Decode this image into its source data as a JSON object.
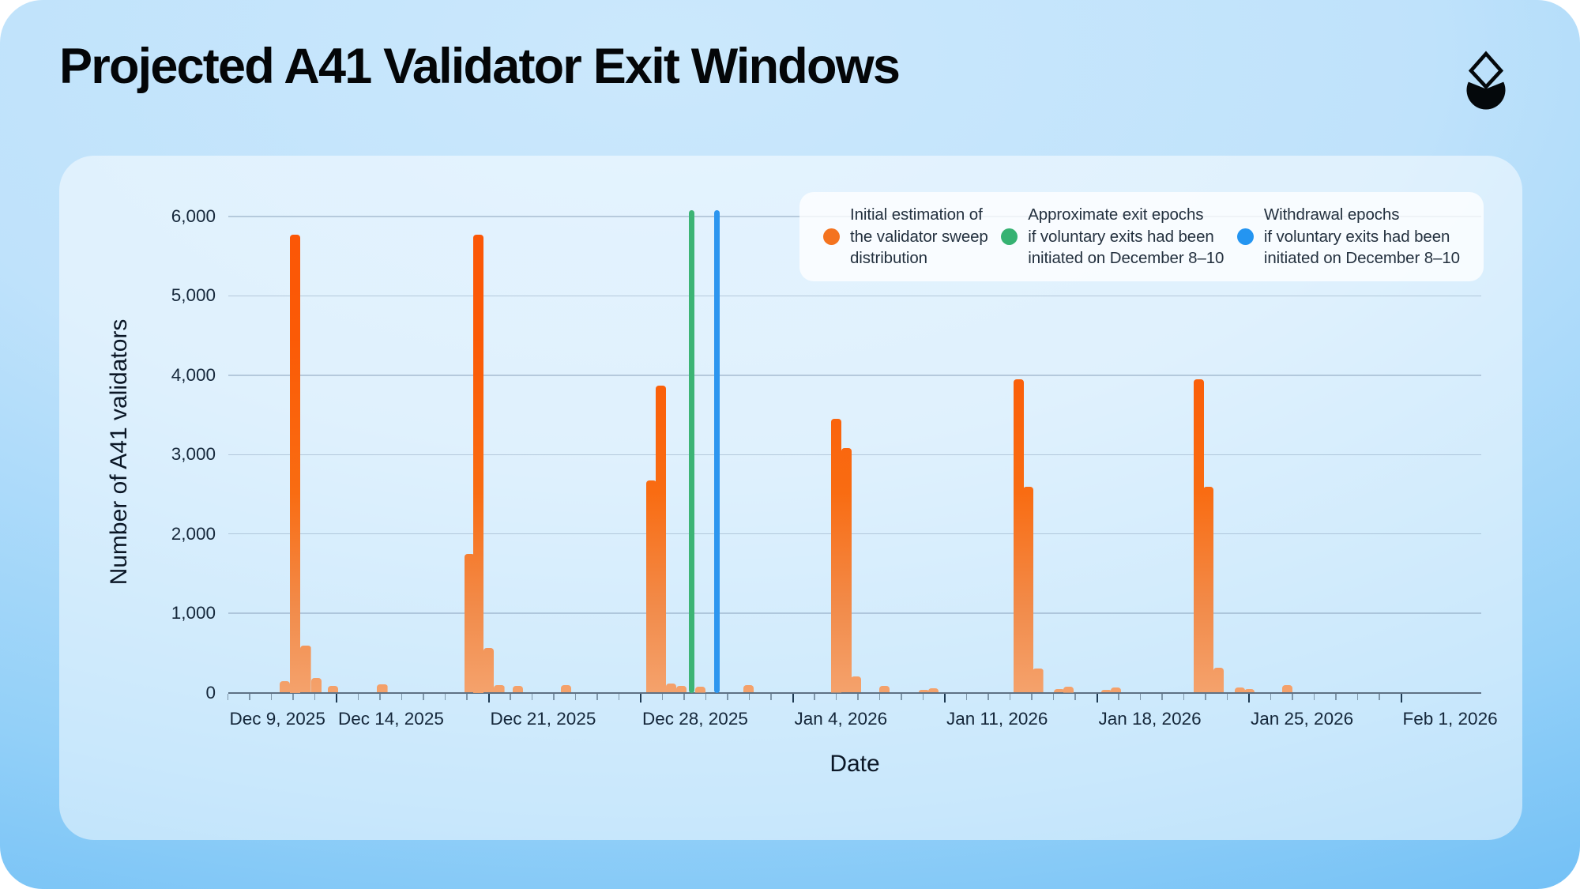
{
  "title": "Projected A41 Validator Exit Windows",
  "logo": {
    "icon": "a41-droplet-logo",
    "color": "#04080B"
  },
  "legend": {
    "items": [
      {
        "color": "#F4731F",
        "lines": [
          "Initial estimation of",
          "the validator sweep",
          "distribution"
        ]
      },
      {
        "color": "#36B272",
        "lines": [
          "Approximate exit epochs",
          "if voluntary exits had been",
          "initiated on December 8–10"
        ]
      },
      {
        "color": "#2495F1",
        "lines": [
          "Withdrawal epochs",
          "if voluntary exits had been",
          "initiated on December 8–10"
        ]
      }
    ]
  },
  "chart_data": {
    "type": "bar",
    "title": "Projected A41 Validator Exit Windows",
    "xlabel": "Date",
    "ylabel": "Number of A41 validators",
    "ylim": [
      0,
      6000
    ],
    "grid": "horizontal",
    "legend_position": "top-right",
    "series_name": "Initial estimation of the validator sweep distribution",
    "x_unit": "days after Dec 9, 2025",
    "yticks": [
      {
        "v": 0,
        "label": "0"
      },
      {
        "v": 1000,
        "label": "1,000"
      },
      {
        "v": 2000,
        "label": "2,000"
      },
      {
        "v": 3000,
        "label": "3,000"
      },
      {
        "v": 4000,
        "label": "4,000"
      },
      {
        "v": 5000,
        "label": "5,000"
      },
      {
        "v": 6000,
        "label": "6,000"
      }
    ],
    "xticks": [
      {
        "d": 0,
        "label": "Dec 9, 2025",
        "strong": false
      },
      {
        "d": 5,
        "label": "Dec 14, 2025",
        "strong": true
      },
      {
        "d": 12,
        "label": "Dec 21, 2025",
        "strong": true
      },
      {
        "d": 19,
        "label": "Dec 28, 2025",
        "strong": true
      },
      {
        "d": 26,
        "label": "Jan 4, 2026",
        "strong": true
      },
      {
        "d": 33,
        "label": "Jan 11, 2026",
        "strong": true
      },
      {
        "d": 40,
        "label": "Jan 18, 2026",
        "strong": true
      },
      {
        "d": 47,
        "label": "Jan 25, 2026",
        "strong": true
      },
      {
        "d": 54,
        "label": "Feb 1, 2026",
        "strong": true
      }
    ],
    "bars": [
      {
        "d": 2.38,
        "v": 145
      },
      {
        "d": 2.86,
        "v": 5775
      },
      {
        "d": 3.34,
        "v": 590
      },
      {
        "d": 3.82,
        "v": 185
      },
      {
        "d": 4.6,
        "v": 80
      },
      {
        "d": 6.87,
        "v": 100
      },
      {
        "d": 10.9,
        "v": 1750
      },
      {
        "d": 11.29,
        "v": 5775
      },
      {
        "d": 11.77,
        "v": 560
      },
      {
        "d": 12.25,
        "v": 95
      },
      {
        "d": 13.1,
        "v": 85
      },
      {
        "d": 15.33,
        "v": 95
      },
      {
        "d": 19.24,
        "v": 2670
      },
      {
        "d": 19.69,
        "v": 3865
      },
      {
        "d": 20.17,
        "v": 115
      },
      {
        "d": 20.62,
        "v": 85
      },
      {
        "d": 21.52,
        "v": 75
      },
      {
        "d": 23.72,
        "v": 90
      },
      {
        "d": 27.75,
        "v": 3450
      },
      {
        "d": 28.24,
        "v": 3080
      },
      {
        "d": 28.68,
        "v": 205
      },
      {
        "d": 29.97,
        "v": 85
      },
      {
        "d": 31.79,
        "v": 35
      },
      {
        "d": 32.22,
        "v": 55
      },
      {
        "d": 36.15,
        "v": 3945
      },
      {
        "d": 36.6,
        "v": 2590
      },
      {
        "d": 37.05,
        "v": 305
      },
      {
        "d": 38.03,
        "v": 40
      },
      {
        "d": 38.46,
        "v": 75
      },
      {
        "d": 40.2,
        "v": 35
      },
      {
        "d": 40.64,
        "v": 65
      },
      {
        "d": 44.44,
        "v": 3945
      },
      {
        "d": 44.9,
        "v": 2590
      },
      {
        "d": 45.36,
        "v": 310
      },
      {
        "d": 46.33,
        "v": 65
      },
      {
        "d": 46.78,
        "v": 40
      },
      {
        "d": 48.53,
        "v": 93
      }
    ],
    "vlines": [
      {
        "d": 21.35,
        "color": "#3CB475",
        "name": "approximate-exit-epochs-line"
      },
      {
        "d": 22.51,
        "color": "#2D96EF",
        "name": "withdrawal-epochs-line"
      }
    ],
    "colors": {
      "bar_top": "#FB5606",
      "bar_bottom": "#F4A26C"
    }
  }
}
